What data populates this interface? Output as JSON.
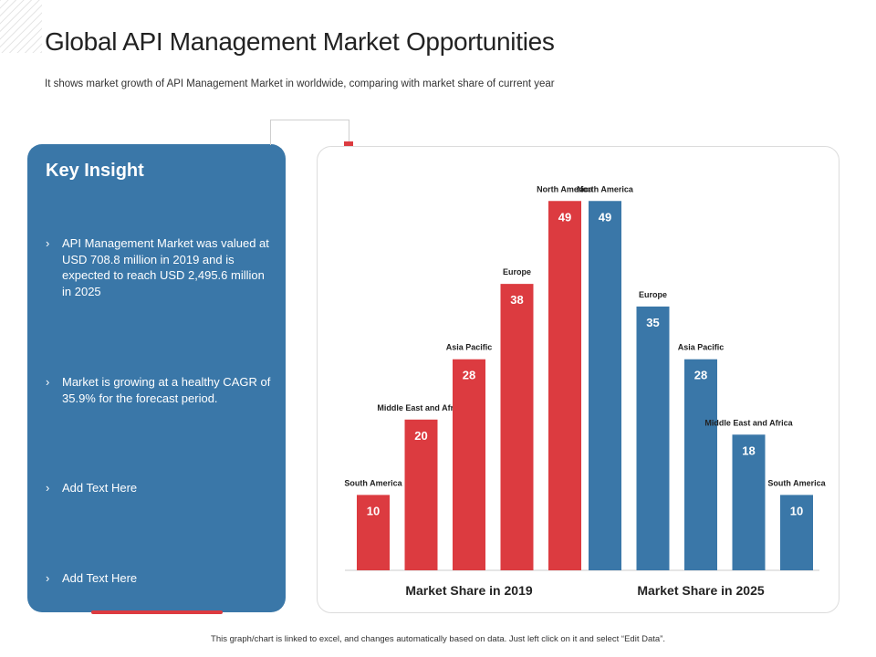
{
  "header": {
    "title": "Global API Management Market Opportunities",
    "subtitle": "It shows market growth of API Management Market in worldwide, comparing with market share of current year"
  },
  "insight": {
    "title": "Key Insight",
    "bullets": [
      "API Management Market was valued at USD 708.8 million in 2019 and is expected to reach USD 2,495.6 million in 2025",
      "Market is growing at a healthy CAGR of 35.9%  for the forecast period.",
      "Add Text Here",
      "Add Text Here"
    ],
    "chevron": "›"
  },
  "footer": {
    "note": "This graph/chart is linked to excel, and changes automatically based on data. Just left click on it and select “Edit Data”."
  },
  "colors": {
    "red": "#dc3b40",
    "blue": "#3a77a8"
  },
  "chart_data": {
    "type": "bar",
    "title": "",
    "xlabel": "",
    "ylabel": "",
    "ylim": [
      0,
      55
    ],
    "grid": false,
    "groups": [
      {
        "name": "Market Share in 2019",
        "color": "#dc3b40",
        "categories": [
          "South America",
          "Middle East and Africa",
          "Asia Pacific",
          "Europe",
          "North America"
        ],
        "values": [
          10,
          20,
          28,
          38,
          49
        ]
      },
      {
        "name": "Market Share in 2025",
        "color": "#3a77a8",
        "categories": [
          "North America",
          "Europe",
          "Asia Pacific",
          "Middle East and Africa",
          "South America"
        ],
        "values": [
          49,
          35,
          28,
          18,
          10
        ]
      }
    ]
  }
}
